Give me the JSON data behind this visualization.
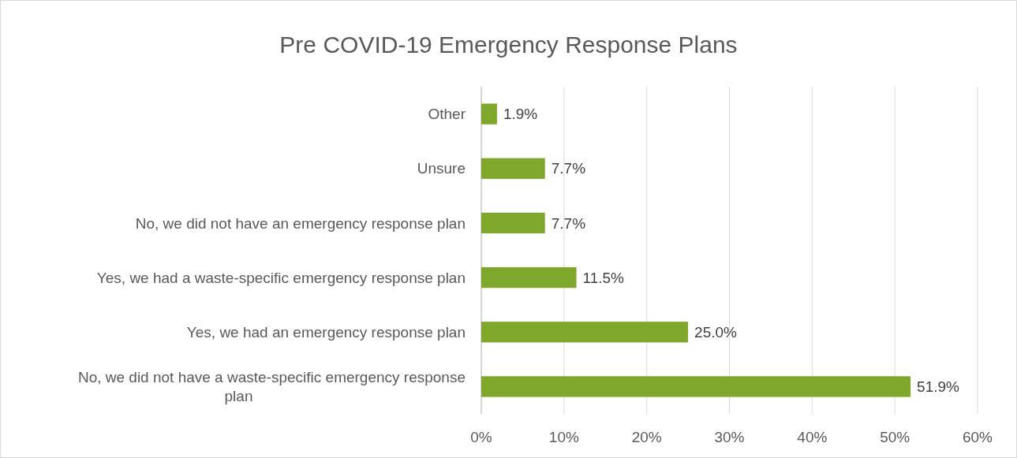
{
  "chart_data": {
    "type": "bar",
    "orientation": "horizontal",
    "title": "Pre COVID-19 Emergency Response Plans",
    "categories": [
      "Other",
      "Unsure",
      "No, we did not have an emergency response plan",
      "Yes, we had a waste-specific emergency response plan",
      "Yes, we had an emergency response plan",
      "No, we did not have a waste-specific emergency response plan"
    ],
    "values": [
      1.9,
      7.7,
      7.7,
      11.5,
      25.0,
      51.9
    ],
    "value_labels": [
      "1.9%",
      "7.7%",
      "7.7%",
      "11.5%",
      "25.0%",
      "51.9%"
    ],
    "color": "#7ea72c",
    "xlim": [
      0,
      60
    ],
    "xticks": [
      {
        "value": 0,
        "label": "0%"
      },
      {
        "value": 10,
        "label": "10%"
      },
      {
        "value": 20,
        "label": "20%"
      },
      {
        "value": 30,
        "label": "30%"
      },
      {
        "value": 40,
        "label": "40%"
      },
      {
        "value": 50,
        "label": "50%"
      },
      {
        "value": 60,
        "label": "60%"
      }
    ],
    "grid": "x"
  }
}
